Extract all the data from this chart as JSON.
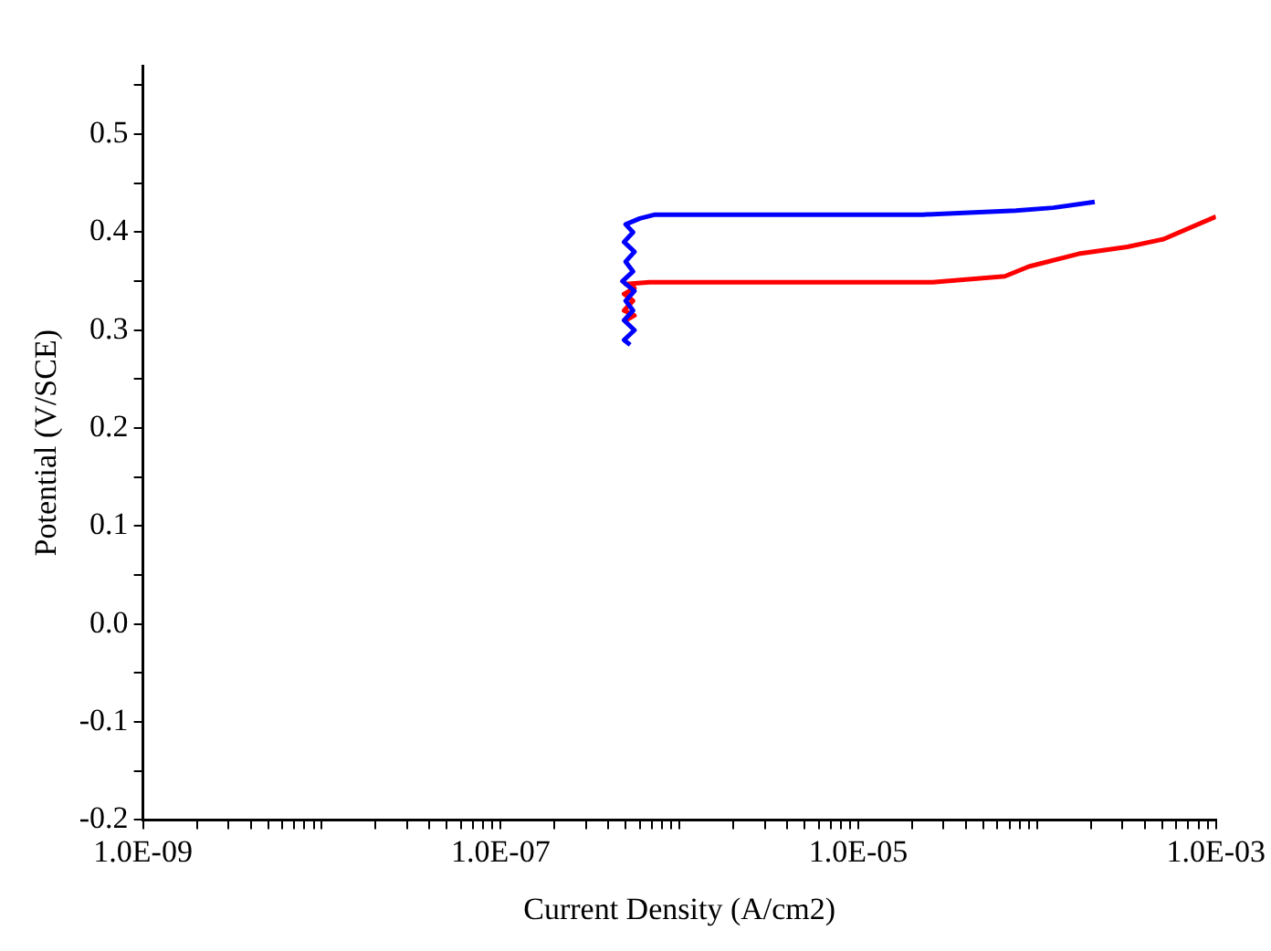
{
  "chart_data": {
    "type": "line",
    "xlabel": "Current Density (A/cm2)",
    "ylabel": "Potential (V/SCE)",
    "log": "x",
    "xlim": [
      1e-09,
      0.001
    ],
    "xticks": [
      {
        "value": 1e-09,
        "label": "1.0E-09"
      },
      {
        "value": 2e-09,
        "label": null
      },
      {
        "value": 3e-09,
        "label": null
      },
      {
        "value": 4e-09,
        "label": null
      },
      {
        "value": 5e-09,
        "label": null
      },
      {
        "value": 6e-09,
        "label": null
      },
      {
        "value": 7e-09,
        "label": null
      },
      {
        "value": 8e-09,
        "label": null
      },
      {
        "value": 9e-09,
        "label": null
      },
      {
        "value": 1e-08,
        "label": null
      },
      {
        "value": 2e-08,
        "label": null
      },
      {
        "value": 3e-08,
        "label": null
      },
      {
        "value": 4e-08,
        "label": null
      },
      {
        "value": 5e-08,
        "label": null
      },
      {
        "value": 6e-08,
        "label": null
      },
      {
        "value": 7e-08,
        "label": null
      },
      {
        "value": 8e-08,
        "label": null
      },
      {
        "value": 9e-08,
        "label": null
      },
      {
        "value": 1e-07,
        "label": "1.0E-07"
      },
      {
        "value": 2e-07,
        "label": null
      },
      {
        "value": 3e-07,
        "label": null
      },
      {
        "value": 4e-07,
        "label": null
      },
      {
        "value": 5e-07,
        "label": null
      },
      {
        "value": 6e-07,
        "label": null
      },
      {
        "value": 7e-07,
        "label": null
      },
      {
        "value": 8e-07,
        "label": null
      },
      {
        "value": 9e-07,
        "label": null
      },
      {
        "value": 1e-06,
        "label": null
      },
      {
        "value": 2e-06,
        "label": null
      },
      {
        "value": 3e-06,
        "label": null
      },
      {
        "value": 4e-06,
        "label": null
      },
      {
        "value": 5e-06,
        "label": null
      },
      {
        "value": 6e-06,
        "label": null
      },
      {
        "value": 7e-06,
        "label": null
      },
      {
        "value": 8e-06,
        "label": null
      },
      {
        "value": 9e-06,
        "label": null
      },
      {
        "value": 1e-05,
        "label": "1.0E-05"
      },
      {
        "value": 2e-05,
        "label": null
      },
      {
        "value": 3e-05,
        "label": null
      },
      {
        "value": 4e-05,
        "label": null
      },
      {
        "value": 5e-05,
        "label": null
      },
      {
        "value": 6e-05,
        "label": null
      },
      {
        "value": 7e-05,
        "label": null
      },
      {
        "value": 8e-05,
        "label": null
      },
      {
        "value": 9e-05,
        "label": null
      },
      {
        "value": 0.0001,
        "label": null
      },
      {
        "value": 0.0002,
        "label": null
      },
      {
        "value": 0.0003,
        "label": null
      },
      {
        "value": 0.0004,
        "label": null
      },
      {
        "value": 0.0005,
        "label": null
      },
      {
        "value": 0.0006,
        "label": null
      },
      {
        "value": 0.0007,
        "label": null
      },
      {
        "value": 0.0008,
        "label": null
      },
      {
        "value": 0.0009,
        "label": null
      },
      {
        "value": 0.001,
        "label": "1.0E-03"
      }
    ],
    "ylim": [
      -0.2,
      0.57
    ],
    "yticks": [
      -0.2,
      {
        "value": -0.15,
        "label": null
      },
      -0.1,
      {
        "value": -0.05,
        "label": null
      },
      {
        "value": 0,
        "label": "0.0"
      },
      {
        "value": 0.05,
        "label": null
      },
      0.1,
      {
        "value": 0.15,
        "label": null
      },
      0.2,
      {
        "value": 0.25,
        "label": null
      },
      0.3,
      {
        "value": 0.35,
        "label": null
      },
      0.4,
      {
        "value": 0.45,
        "label": null
      },
      0.5,
      {
        "value": 0.55,
        "label": null
      }
    ],
    "grid": false,
    "legend": false,
    "marker": "none",
    "line_style": "solid",
    "series": [
      {
        "color": "#0000ff",
        "x": [
          5.3e-07,
          4.9e-07,
          5.6e-07,
          4.9e-07,
          5.5e-07,
          5e-07,
          5.6e-07,
          4.8e-07,
          5.5e-07,
          5e-07,
          5.6e-07,
          4.9e-07,
          5.5e-07,
          5e-07,
          6e-07,
          7.3e-07,
          2.3e-05,
          7.6e-05,
          0.000123,
          0.00021
        ],
        "values": [
          0.285,
          0.29,
          0.3,
          0.31,
          0.32,
          0.33,
          0.34,
          0.35,
          0.36,
          0.37,
          0.38,
          0.39,
          0.4,
          0.408,
          0.414,
          0.418,
          0.418,
          0.422,
          0.425,
          0.431
        ]
      },
      {
        "color": "#ff0000",
        "x": [
          5e-07,
          5.6e-07,
          4.9e-07,
          5.5e-07,
          4.9e-07,
          5.6e-07,
          5e-07,
          6.8e-07,
          2.6e-05,
          6.6e-05,
          9e-05,
          0.000171,
          0.00032,
          0.00051,
          0.001
        ],
        "values": [
          0.31,
          0.315,
          0.32,
          0.33,
          0.337,
          0.343,
          0.347,
          0.349,
          0.349,
          0.355,
          0.365,
          0.378,
          0.385,
          0.393,
          0.416
        ]
      }
    ]
  }
}
